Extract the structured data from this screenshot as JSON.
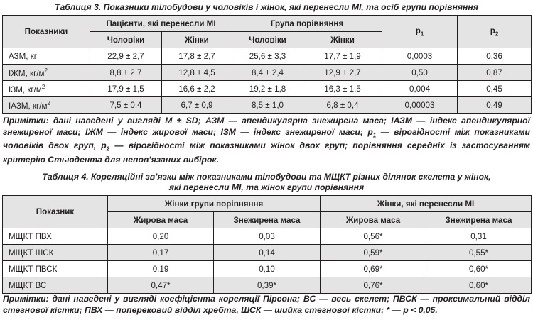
{
  "table3": {
    "caption": "Таблиця 3. Показники тілобудови у чоловіків і жінок, які перенесли МІ, та осіб групи порівняння",
    "headers": {
      "indicator": "Показники",
      "patients_group": "Пацієнти, які перенесли МІ",
      "comparison_group": "Група порівняння",
      "men": "Чоловіки",
      "women": "Жінки",
      "p1": "p1",
      "p2": "p2"
    },
    "rows": [
      {
        "label": "АЗМ, кг",
        "pm": "22,9 ± 2,7",
        "pw": "17,8 ± 2,7",
        "cm": "25,6 ± 3,3",
        "cw": "17,7 ± 1,9",
        "p1": "0,0003",
        "p2": "0,36"
      },
      {
        "label": "ІЖМ, кг/м²",
        "pm": "8,8 ± 2,7",
        "pw": "12,8 ± 4,5",
        "cm": "8,4 ± 2,4",
        "cw": "12,9 ± 2,7",
        "p1": "0,50",
        "p2": "0,87"
      },
      {
        "label": "ІЗМ, кг/м²",
        "pm": "17,9 ± 1,5",
        "pw": "16,6 ± 2,2",
        "cm": "19,2 ± 1,8",
        "cw": "16,3 ± 1,5",
        "p1": "0,004",
        "p2": "0,45"
      },
      {
        "label": "ІАЗМ, кг/м²",
        "pm": "7,5 ± 0,4",
        "pw": "6,7 ± 0,9",
        "cm": "8,5 ± 1,0",
        "cw": "6,8 ± 0,4",
        "p1": "0,00003",
        "p2": "0,49"
      }
    ],
    "note": "Примітки: дані наведені у вигляді M ± SD; АЗМ — апендикулярна знежирена маса; ІАЗМ — індекс апендикулярної знежиреної маси; ІЖМ — індекс жирової маси; ІЗМ — індекс знежиреної маси; p1 — вірогідності між показниками чоловіків двох груп, p2 — вірогідності між показниками жінок двох груп; порівняння середніх із застосуванням критерію Стьюдента для непов’язаних вибірок."
  },
  "table4": {
    "caption_line1": "Таблиця 4. Кореляційні зв’язки між показниками тілобудови та МЩКТ різних ділянок скелета у жінок,",
    "caption_line2": "які перенесли МІ, та жінок групи порівняння",
    "headers": {
      "indicator": "Показник",
      "comparison_women": "Жінки групи порівняння",
      "patient_women": "Жінки, які перенесли МІ",
      "fat_mass": "Жирова маса",
      "lean_mass": "Знежирена маса"
    },
    "rows": [
      {
        "label": "МЩКТ ПВХ",
        "cf": "0,20",
        "cl": "0,03",
        "pf": "0,56*",
        "pl": "0,31"
      },
      {
        "label": "МЩКТ ШСК",
        "cf": "0,17",
        "cl": "0,14",
        "pf": "0,59*",
        "pl": "0,55*"
      },
      {
        "label": "МЩКТ ПВСК",
        "cf": "0,19",
        "cl": "0,10",
        "pf": "0,69*",
        "pl": "0,60*"
      },
      {
        "label": "МЩКТ ВС",
        "cf": "0,47*",
        "cl": "0,39*",
        "pf": "0,76*",
        "pl": "0,60*"
      }
    ],
    "note": "Примітки: дані наведені у вигляді коефіцієнта кореляції Пірсона; ВС — весь скелет; ПВСК — проксимальний відділ стегнової кістки; ПВХ — поперековий відділ хребта, ШСК — шийка стегнової кістки; * — р < 0,05."
  }
}
